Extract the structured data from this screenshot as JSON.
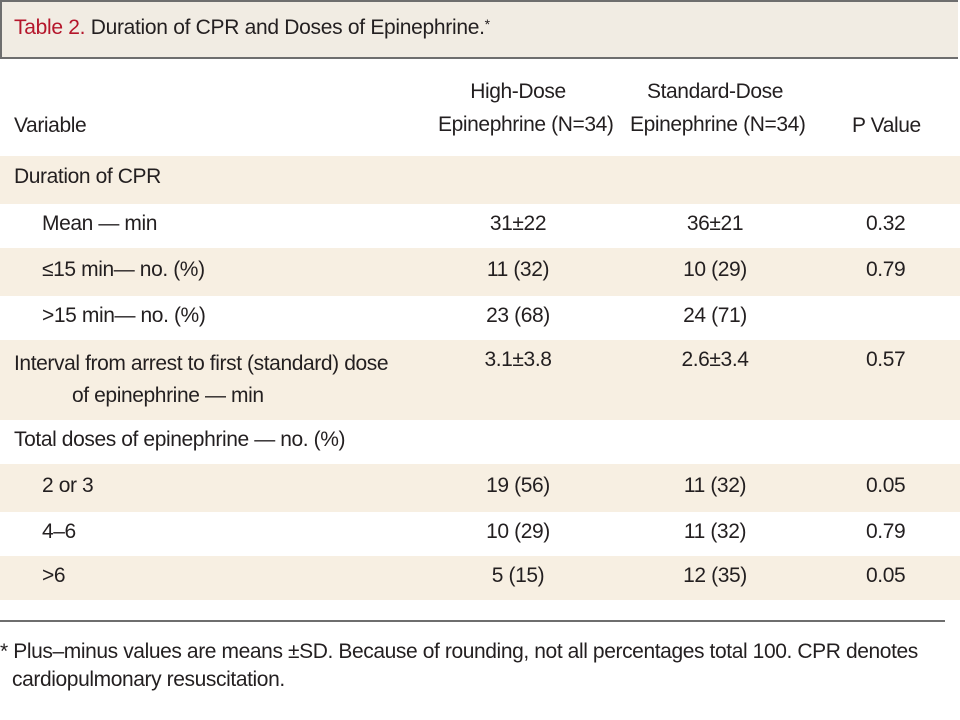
{
  "title": {
    "label": "Table 2.",
    "text": "Duration of CPR and Doses of Epinephrine.",
    "marker": "*"
  },
  "columns": {
    "variable": "Variable",
    "high_dose_line1": "High-Dose",
    "high_dose_line2": "Epinephrine (N=34)",
    "standard_dose_line1": "Standard-Dose",
    "standard_dose_line2": "Epinephrine (N=34)",
    "p_value": "P Value"
  },
  "rows": [
    {
      "variable": "Duration of CPR",
      "variable_line2": "",
      "high_dose": "",
      "standard_dose": "",
      "p_value": ""
    },
    {
      "variable": "Mean — min",
      "variable_line2": "",
      "high_dose": "31±22",
      "standard_dose": "36±21",
      "p_value": "0.32"
    },
    {
      "variable": "≤15 min— no. (%)",
      "variable_line2": "",
      "high_dose": "11 (32)",
      "standard_dose": "10 (29)",
      "p_value": "0.79"
    },
    {
      "variable": ">15 min— no. (%)",
      "variable_line2": "",
      "high_dose": "23 (68)",
      "standard_dose": "24 (71)",
      "p_value": ""
    },
    {
      "variable": "Interval from arrest to first (standard) dose",
      "variable_line2": "of epinephrine — min",
      "high_dose": "3.1±3.8",
      "standard_dose": "2.6±3.4",
      "p_value": "0.57"
    },
    {
      "variable": "Total doses of epinephrine — no. (%)",
      "variable_line2": "",
      "high_dose": "",
      "standard_dose": "",
      "p_value": ""
    },
    {
      "variable": "2 or 3",
      "variable_line2": "",
      "high_dose": "19 (56)",
      "standard_dose": "11 (32)",
      "p_value": "0.05"
    },
    {
      "variable": "4–6",
      "variable_line2": "",
      "high_dose": "10 (29)",
      "standard_dose": "11 (32)",
      "p_value": "0.79"
    },
    {
      "variable": ">6",
      "variable_line2": "",
      "high_dose": "5 (15)",
      "standard_dose": "12 (35)",
      "p_value": "0.05"
    }
  ],
  "footnote": "* Plus–minus values are means ±SD. Because of rounding, not all percentages total 100. CPR denotes cardiopulmonary resuscitation."
}
